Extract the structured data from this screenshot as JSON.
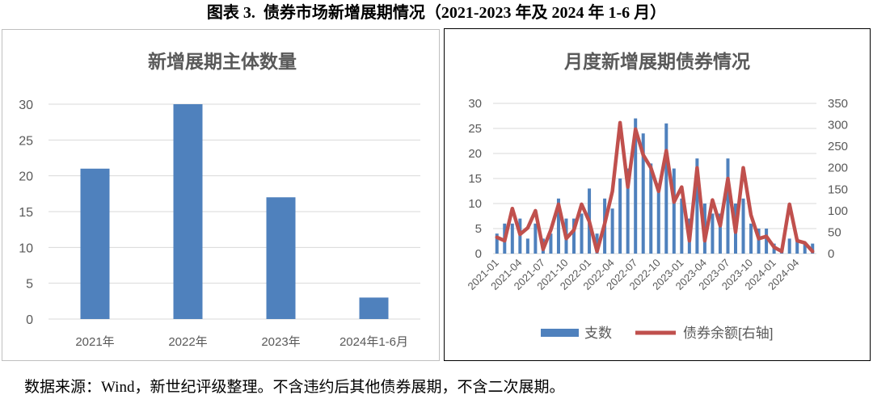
{
  "figure": {
    "title": "图表 3.  债券市场新增展期情况（2021-2023 年及 2024 年 1-6 月）",
    "source": "数据来源：Wind，新世纪评级整理。不含违约后其他债券展期，不含二次展期。"
  },
  "chart_data": [
    {
      "type": "bar",
      "title": "新增展期主体数量",
      "categories": [
        "2021年",
        "2022年",
        "2023年",
        "2024年1-6月"
      ],
      "values": [
        21,
        30,
        17,
        3
      ],
      "ylim": [
        0,
        30
      ],
      "yticks": [
        0,
        5,
        10,
        15,
        20,
        25,
        30
      ],
      "grid": true,
      "legend": "none",
      "color": "#4f81bd"
    },
    {
      "type": "bar+line",
      "title": "月度新增展期债券情况",
      "x": [
        "2021-01",
        "2021-02",
        "2021-03",
        "2021-04",
        "2021-05",
        "2021-06",
        "2021-07",
        "2021-08",
        "2021-09",
        "2021-10",
        "2021-11",
        "2021-12",
        "2022-01",
        "2022-02",
        "2022-03",
        "2022-04",
        "2022-05",
        "2022-06",
        "2022-07",
        "2022-08",
        "2022-09",
        "2022-10",
        "2022-11",
        "2022-12",
        "2023-01",
        "2023-02",
        "2023-03",
        "2023-04",
        "2023-05",
        "2023-06",
        "2023-07",
        "2023-08",
        "2023-09",
        "2023-10",
        "2023-11",
        "2023-12",
        "2024-01",
        "2024-02",
        "2024-03",
        "2024-04",
        "2024-05",
        "2024-06"
      ],
      "series": [
        {
          "name": "支数",
          "type": "bar",
          "axis": "left",
          "color": "#4f81bd",
          "values": [
            4,
            6,
            6,
            7,
            3,
            6,
            3,
            4,
            11,
            7,
            7,
            8,
            13,
            4,
            11,
            9,
            15,
            17,
            27,
            24,
            18,
            14,
            26,
            17,
            11,
            7,
            19,
            10,
            8,
            8,
            19,
            10,
            11,
            6,
            5,
            5,
            2,
            1,
            3,
            3,
            2,
            2
          ]
        },
        {
          "name": "债券余额[右轴]",
          "type": "line",
          "axis": "right",
          "color": "#c0504d",
          "values": [
            38,
            30,
            105,
            45,
            60,
            100,
            10,
            55,
            115,
            35,
            55,
            115,
            75,
            5,
            70,
            145,
            305,
            155,
            290,
            230,
            200,
            145,
            240,
            120,
            155,
            30,
            200,
            30,
            125,
            65,
            175,
            50,
            200,
            90,
            35,
            40,
            15,
            5,
            115,
            30,
            25,
            5
          ]
        }
      ],
      "ylim_left": [
        0,
        30
      ],
      "yticks_left": [
        0,
        5,
        10,
        15,
        20,
        25,
        30
      ],
      "ylim_right": [
        0,
        350
      ],
      "yticks_right": [
        0,
        50,
        100,
        150,
        200,
        250,
        300,
        350
      ],
      "grid": true,
      "legend": "bottom"
    }
  ]
}
